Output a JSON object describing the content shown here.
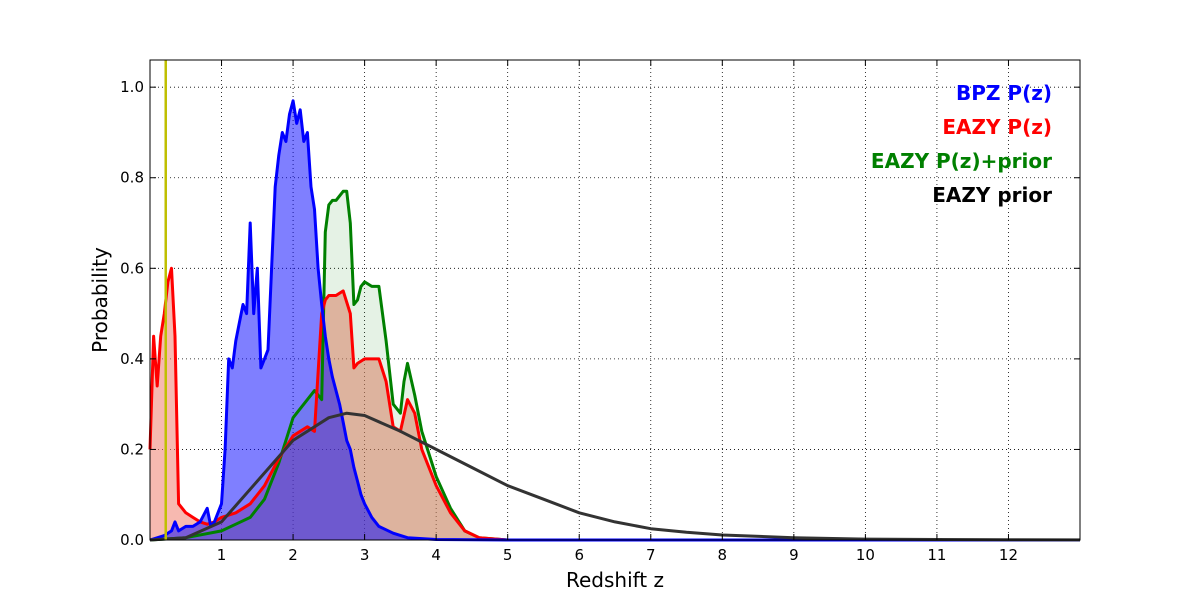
{
  "chart_data": {
    "type": "area",
    "xlabel": "Redshift z",
    "ylabel": "Probability",
    "xlim": [
      0,
      13
    ],
    "ylim": [
      0,
      1.06
    ],
    "xticks": [
      1,
      2,
      3,
      4,
      5,
      6,
      7,
      8,
      9,
      10,
      11,
      12
    ],
    "yticks": [
      0.0,
      0.2,
      0.4,
      0.6,
      0.8,
      1.0
    ],
    "ytick_labels": [
      "0.0",
      "0.2",
      "0.4",
      "0.6",
      "0.8",
      "1.0"
    ],
    "grid": true,
    "legend_position": "top-right",
    "vertical_marker": {
      "x": 0.22,
      "color": "#bfbf00"
    },
    "series": [
      {
        "name": "BPZ P(z)",
        "color": "#0000ff",
        "fill": "#0000ff",
        "fill_opacity": 0.5,
        "x": [
          0,
          0.2,
          0.3,
          0.35,
          0.4,
          0.5,
          0.6,
          0.7,
          0.8,
          0.85,
          0.9,
          1.0,
          1.05,
          1.1,
          1.15,
          1.2,
          1.25,
          1.3,
          1.35,
          1.4,
          1.45,
          1.5,
          1.55,
          1.6,
          1.65,
          1.7,
          1.75,
          1.8,
          1.85,
          1.9,
          1.95,
          2.0,
          2.05,
          2.1,
          2.15,
          2.2,
          2.25,
          2.3,
          2.35,
          2.4,
          2.45,
          2.5,
          2.55,
          2.6,
          2.65,
          2.7,
          2.75,
          2.8,
          2.85,
          2.9,
          2.95,
          3.0,
          3.1,
          3.2,
          3.4,
          3.6,
          4.0,
          5.0,
          13.0
        ],
        "y": [
          0.0,
          0.01,
          0.02,
          0.04,
          0.02,
          0.03,
          0.03,
          0.04,
          0.07,
          0.03,
          0.04,
          0.08,
          0.2,
          0.4,
          0.38,
          0.44,
          0.48,
          0.52,
          0.5,
          0.7,
          0.5,
          0.6,
          0.38,
          0.4,
          0.42,
          0.6,
          0.78,
          0.85,
          0.9,
          0.88,
          0.94,
          0.97,
          0.92,
          0.95,
          0.88,
          0.9,
          0.78,
          0.73,
          0.6,
          0.52,
          0.45,
          0.4,
          0.36,
          0.33,
          0.3,
          0.26,
          0.22,
          0.2,
          0.16,
          0.13,
          0.1,
          0.08,
          0.05,
          0.03,
          0.015,
          0.005,
          0.001,
          0.0,
          0.0
        ]
      },
      {
        "name": "EAZY P(z)",
        "color": "#ff0000",
        "fill": "#f08070",
        "fill_opacity": 0.55,
        "x": [
          0,
          0.05,
          0.1,
          0.15,
          0.2,
          0.25,
          0.3,
          0.35,
          0.4,
          0.45,
          0.5,
          0.6,
          0.7,
          0.8,
          0.9,
          1.0,
          1.2,
          1.4,
          1.6,
          1.8,
          2.0,
          2.2,
          2.3,
          2.4,
          2.45,
          2.5,
          2.6,
          2.7,
          2.8,
          2.85,
          2.9,
          3.0,
          3.1,
          3.2,
          3.3,
          3.4,
          3.5,
          3.6,
          3.7,
          3.8,
          4.0,
          4.2,
          4.4,
          4.6,
          5.0,
          13.0
        ],
        "y": [
          0.2,
          0.45,
          0.34,
          0.45,
          0.5,
          0.57,
          0.6,
          0.45,
          0.08,
          0.07,
          0.06,
          0.05,
          0.04,
          0.035,
          0.04,
          0.05,
          0.06,
          0.08,
          0.12,
          0.18,
          0.23,
          0.25,
          0.24,
          0.5,
          0.53,
          0.54,
          0.54,
          0.55,
          0.5,
          0.38,
          0.39,
          0.4,
          0.4,
          0.4,
          0.35,
          0.25,
          0.24,
          0.31,
          0.28,
          0.2,
          0.12,
          0.06,
          0.02,
          0.005,
          0.0,
          0.0
        ]
      },
      {
        "name": "EAZY P(z)+prior",
        "color": "#008000",
        "fill": "#008000",
        "fill_opacity": 0.1,
        "x": [
          0,
          0.5,
          1.0,
          1.2,
          1.4,
          1.6,
          1.8,
          2.0,
          2.2,
          2.3,
          2.4,
          2.45,
          2.5,
          2.55,
          2.6,
          2.7,
          2.75,
          2.8,
          2.85,
          2.9,
          2.95,
          3.0,
          3.1,
          3.2,
          3.3,
          3.4,
          3.5,
          3.55,
          3.6,
          3.7,
          3.8,
          4.0,
          4.2,
          4.4,
          4.6,
          5.0,
          13.0
        ],
        "y": [
          0.0,
          0.005,
          0.02,
          0.035,
          0.05,
          0.09,
          0.17,
          0.27,
          0.31,
          0.33,
          0.31,
          0.68,
          0.74,
          0.75,
          0.75,
          0.77,
          0.77,
          0.7,
          0.52,
          0.53,
          0.56,
          0.57,
          0.56,
          0.56,
          0.44,
          0.3,
          0.28,
          0.35,
          0.39,
          0.32,
          0.24,
          0.14,
          0.07,
          0.02,
          0.005,
          0.0,
          0.0
        ]
      },
      {
        "name": "EAZY prior",
        "color": "#333333",
        "fill": null,
        "x": [
          0,
          0.5,
          1.0,
          1.5,
          2.0,
          2.5,
          2.75,
          3.0,
          3.5,
          4.0,
          4.5,
          5.0,
          5.5,
          6.0,
          6.5,
          7.0,
          7.5,
          8.0,
          9.0,
          10.0,
          11.0,
          12.0,
          13.0
        ],
        "y": [
          0.0,
          0.005,
          0.04,
          0.13,
          0.22,
          0.27,
          0.28,
          0.275,
          0.24,
          0.2,
          0.16,
          0.12,
          0.09,
          0.06,
          0.04,
          0.025,
          0.017,
          0.011,
          0.005,
          0.002,
          0.001,
          0.0004,
          0.0002
        ]
      }
    ]
  }
}
